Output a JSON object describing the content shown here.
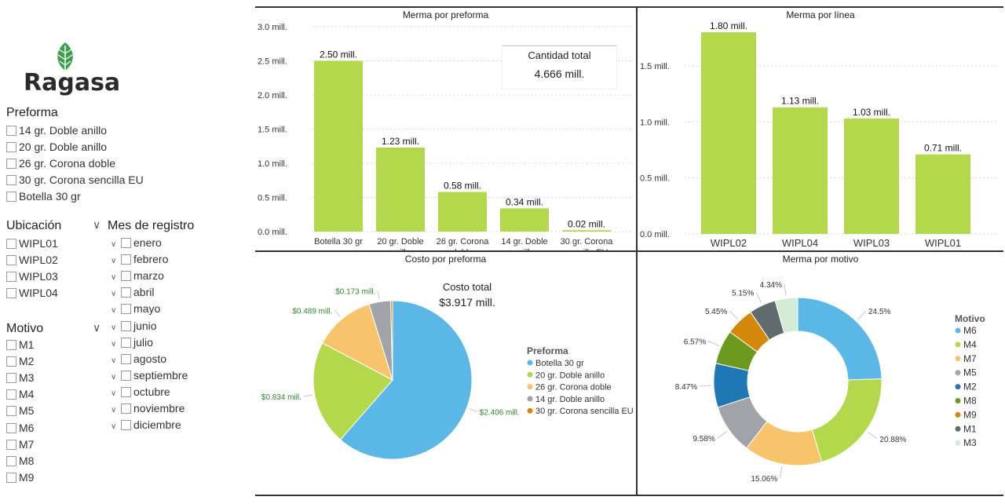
{
  "brand": {
    "name": "Ragasa",
    "leaf_color": "#3f9e4b"
  },
  "slicers": {
    "preforma": {
      "title": "Preforma",
      "items": [
        "14 gr. Doble anillo",
        "20 gr. Doble anillo",
        "26 gr. Corona doble",
        "30 gr. Corona sencilla EU",
        "Botella 30 gr"
      ]
    },
    "ubicacion": {
      "title": "Ubicación",
      "items": [
        "WIPL01",
        "WIPL02",
        "WIPL03",
        "WIPL04"
      ]
    },
    "mes": {
      "title": "Mes de registro",
      "items": [
        "enero",
        "febrero",
        "marzo",
        "abril",
        "mayo",
        "junio",
        "julio",
        "agosto",
        "septiembre",
        "octubre",
        "noviembre",
        "diciembre"
      ]
    },
    "motivo": {
      "title": "Motivo",
      "items": [
        "M1",
        "M2",
        "M3",
        "M4",
        "M5",
        "M6",
        "M7",
        "M8",
        "M9"
      ]
    }
  },
  "cards": {
    "cantidad_total": {
      "label": "Cantidad total",
      "value": "4.666 mill."
    },
    "costo_total": {
      "label": "Costo total",
      "value": "$3.917 mill."
    }
  },
  "colors": {
    "bar": "#b3d84c",
    "accent_text": "#2e8b2e"
  },
  "chart_data": [
    {
      "id": "merma_preforma",
      "type": "bar",
      "title": "Merma por preforma",
      "categories": [
        [
          "Botella 30 gr"
        ],
        [
          "20 gr. Doble",
          "anillo"
        ],
        [
          "26 gr. Corona",
          "doble"
        ],
        [
          "14 gr. Doble",
          "anillo"
        ],
        [
          "30 gr. Corona",
          "sencilla EU"
        ]
      ],
      "values": [
        2.5,
        1.23,
        0.58,
        0.34,
        0.02
      ],
      "value_labels": [
        "2.50 mill.",
        "1.23 mill.",
        "0.58 mill.",
        "0.34 mill.",
        "0.02 mill."
      ],
      "yticks": [
        "0.0 mill.",
        "0.5 mill.",
        "1.0 mill.",
        "1.5 mill.",
        "2.0 mill.",
        "2.5 mill.",
        "3.0 mill."
      ],
      "ylim": [
        0,
        3.0
      ],
      "grid": true
    },
    {
      "id": "merma_linea",
      "type": "bar",
      "title": "Merma por línea",
      "categories": [
        [
          "WIPL02"
        ],
        [
          "WIPL04"
        ],
        [
          "WIPL03"
        ],
        [
          "WIPL01"
        ]
      ],
      "values": [
        1.8,
        1.13,
        1.03,
        0.71
      ],
      "value_labels": [
        "1.80 mill.",
        "1.13 mill.",
        "1.03 mill.",
        "0.71 mill."
      ],
      "yticks": [
        "0.0 mill.",
        "0.5 mill.",
        "1.0 mill.",
        "1.5 mill."
      ],
      "ylim": [
        0,
        1.85
      ],
      "grid": true
    },
    {
      "id": "costo_preforma",
      "type": "pie",
      "title": "Costo por preforma",
      "legend_title": "Preforma",
      "legend_position": "right",
      "labels": [
        "Botella 30 gr",
        "20 gr. Doble anillo",
        "26 gr. Corona doble",
        "14 gr. Doble anillo",
        "30 gr. Corona sencilla EU"
      ],
      "values": [
        2.406,
        0.834,
        0.489,
        0.173,
        0.015
      ],
      "value_labels": [
        "$2.406 mill.",
        "$0.834 mill.",
        "$0.489 mill.",
        "$0.173 mill.",
        ""
      ],
      "colors": [
        "#5bb8e6",
        "#b3d84c",
        "#f7c36b",
        "#a0a4a8",
        "#d4880c"
      ]
    },
    {
      "id": "merma_motivo",
      "type": "pie",
      "title": "Merma por motivo",
      "legend_title": "Motivo",
      "legend_position": "right",
      "labels": [
        "M6",
        "M4",
        "M7",
        "M5",
        "M2",
        "M8",
        "M9",
        "M1",
        "M3"
      ],
      "values": [
        24.5,
        20.88,
        15.06,
        9.58,
        8.47,
        6.57,
        5.45,
        5.15,
        4.34
      ],
      "value_labels": [
        "24.5%",
        "20.88%",
        "15.06%",
        "9.58%",
        "8.47%",
        "6.57%",
        "5.45%",
        "5.15%",
        "4.34%"
      ],
      "colors": [
        "#5bb8e6",
        "#b3d84c",
        "#f7c36b",
        "#a0a4a8",
        "#1f77b4",
        "#6b9a1f",
        "#d4880c",
        "#5f6b6d",
        "#d3ecd6"
      ]
    }
  ]
}
